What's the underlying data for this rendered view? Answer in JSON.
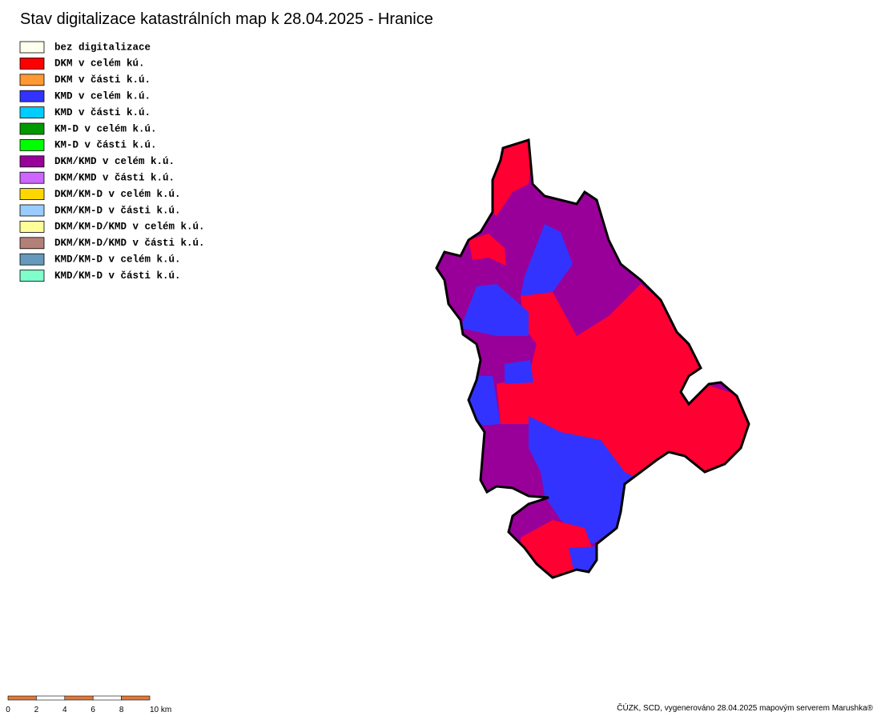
{
  "title": "Stav digitalizace katastrálních map k 28.04.2025 - Hranice",
  "legend": [
    {
      "label": "bez digitalizace",
      "color": "#ffffee"
    },
    {
      "label": "DKM v celém kú.",
      "color": "#ff0000"
    },
    {
      "label": "DKM v části k.ú.",
      "color": "#ff9933"
    },
    {
      "label": "KMD v celém k.ú.",
      "color": "#3333ff"
    },
    {
      "label": "KMD v části k.ú.",
      "color": "#00ccff"
    },
    {
      "label": "KM-D v celém k.ú.",
      "color": "#009900"
    },
    {
      "label": "KM-D v části k.ú.",
      "color": "#00ff00"
    },
    {
      "label": "DKM/KMD v celém k.ú.",
      "color": "#990099"
    },
    {
      "label": "DKM/KMD v části k.ú.",
      "color": "#cc66ff"
    },
    {
      "label": "DKM/KM-D v celém k.ú.",
      "color": "#ffd700"
    },
    {
      "label": "DKM/KM-D v části k.ú.",
      "color": "#99ccff"
    },
    {
      "label": "DKM/KM-D/KMD v celém k.ú.",
      "color": "#ffff99"
    },
    {
      "label": "DKM/KM-D/KMD v části k.ú.",
      "color": "#b38077"
    },
    {
      "label": "KMD/KM-D v celém k.ú.",
      "color": "#6699bb"
    },
    {
      "label": "KMD/KM-D v části k.ú.",
      "color": "#80ffcc"
    }
  ],
  "scale": {
    "ticks": [
      0,
      2,
      4,
      6,
      8,
      {
        "value": 10,
        "label": "10 km"
      }
    ]
  },
  "credit": "ČÚZK, SCD, vygenerováno 28.04.2025 mapovým serverem Marushka®"
}
